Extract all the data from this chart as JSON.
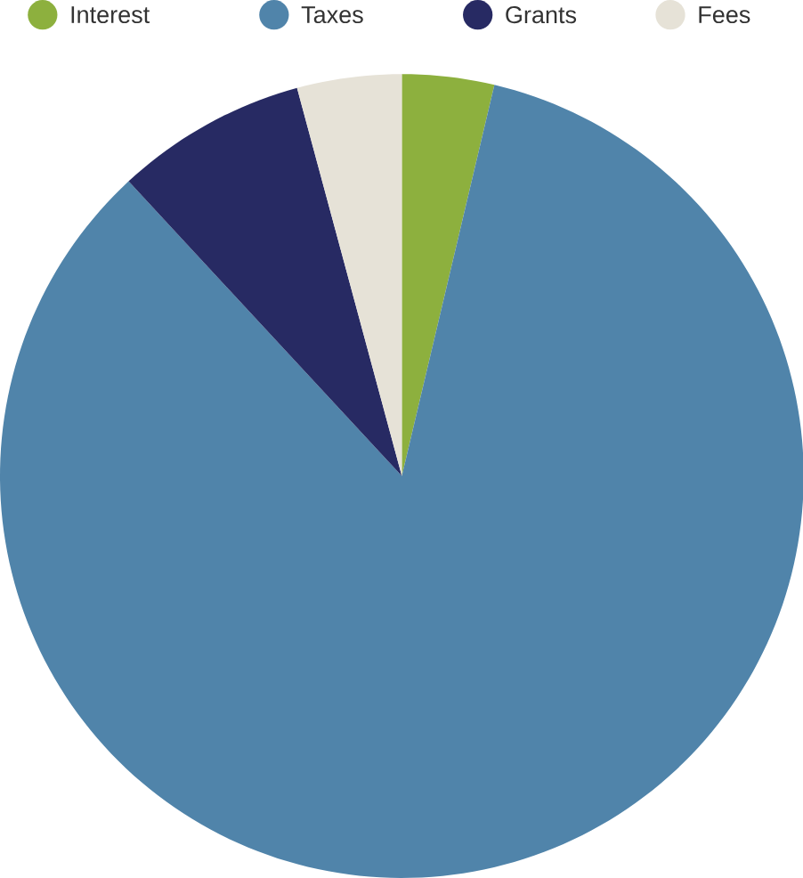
{
  "chart_data": {
    "type": "pie",
    "categories": [
      "Interest",
      "Taxes",
      "Grants",
      "Fees"
    ],
    "values": [
      3.7,
      84.4,
      7.7,
      4.2
    ],
    "colors": [
      "#8db03e",
      "#5084aa",
      "#272a63",
      "#e6e2d7"
    ],
    "legend": "top"
  }
}
